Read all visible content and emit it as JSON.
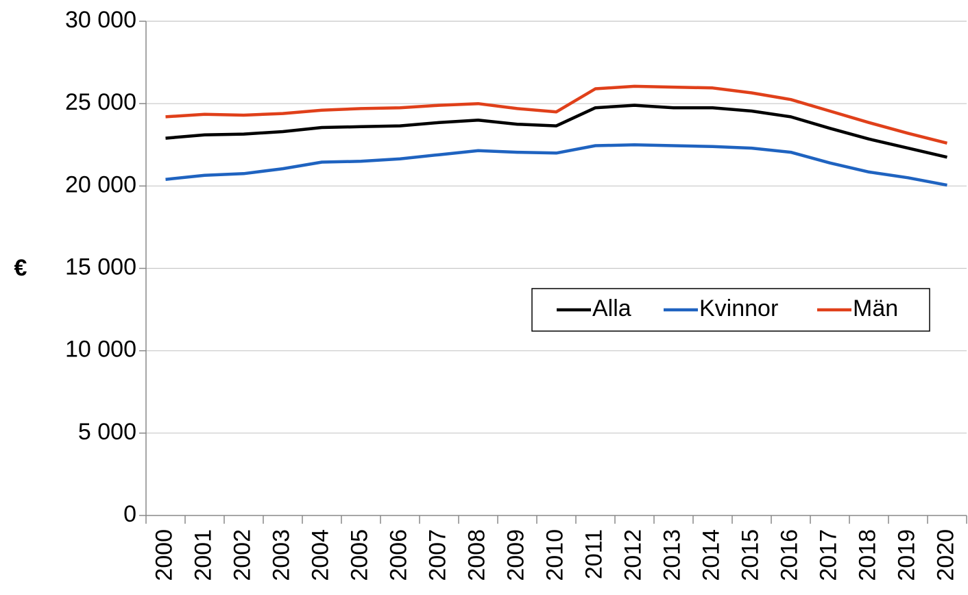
{
  "chart_data": {
    "type": "line",
    "y_label": "€",
    "categories": [
      "2000",
      "2001",
      "2002",
      "2003",
      "2004",
      "2005",
      "2006",
      "2007",
      "2008",
      "2009",
      "2010",
      "2011",
      "2012",
      "2013",
      "2014",
      "2015",
      "2016",
      "2017",
      "2018",
      "2019",
      "2020"
    ],
    "series": [
      {
        "name": "Alla",
        "color": "#000000",
        "values": [
          22900,
          23100,
          23150,
          23300,
          23550,
          23600,
          23650,
          23850,
          24000,
          23750,
          23650,
          24750,
          24900,
          24750,
          24750,
          24550,
          24200,
          23500,
          22850,
          22300,
          21750
        ]
      },
      {
        "name": "Kvinnor",
        "color": "#1f63c0",
        "values": [
          20400,
          20650,
          20750,
          21050,
          21450,
          21500,
          21650,
          21900,
          22150,
          22050,
          22000,
          22450,
          22500,
          22450,
          22400,
          22300,
          22050,
          21400,
          20850,
          20500,
          20050
        ]
      },
      {
        "name": "Män",
        "color": "#e0401a",
        "values": [
          24200,
          24350,
          24300,
          24400,
          24600,
          24700,
          24750,
          24900,
          25000,
          24700,
          24500,
          25900,
          26050,
          26000,
          25950,
          25650,
          25250,
          24550,
          23850,
          23200,
          22600
        ]
      }
    ],
    "ylim": [
      0,
      30000
    ],
    "yticks": [
      {
        "value": 0,
        "label": "0"
      },
      {
        "value": 5000,
        "label": "5 000"
      },
      {
        "value": 10000,
        "label": "10 000"
      },
      {
        "value": 15000,
        "label": "15 000"
      },
      {
        "value": 20000,
        "label": "20 000"
      },
      {
        "value": 25000,
        "label": "25 000"
      },
      {
        "value": 30000,
        "label": "30 000"
      }
    ],
    "grid": true
  }
}
